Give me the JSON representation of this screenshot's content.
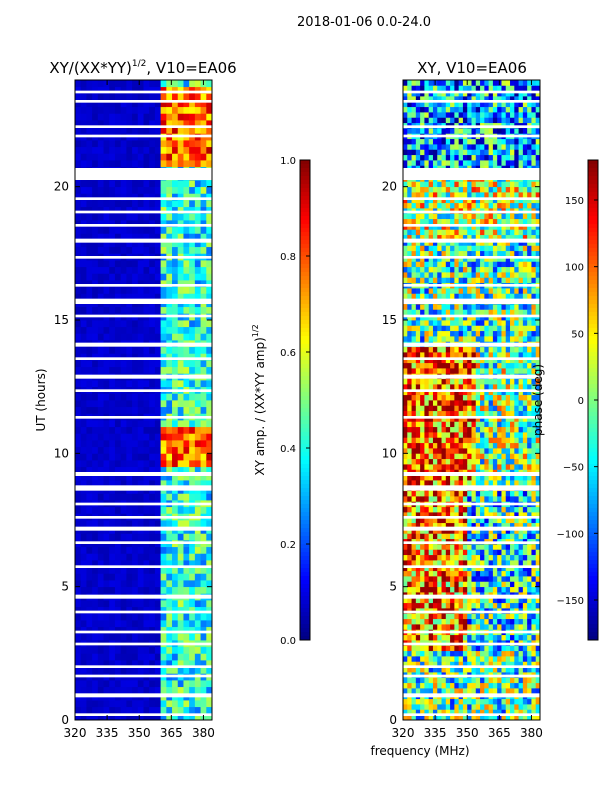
{
  "figure": {
    "suptitle": "2018-01-06 0.0-24.0",
    "xlabel": "frequency (MHz)"
  },
  "chart_data": [
    {
      "type": "heatmap",
      "title_main": "XY/(XX*YY)",
      "title_sup": "1/2",
      "title_tail": ", V10=EA06",
      "ylabel": "UT (hours)",
      "xlim": [
        320,
        384
      ],
      "ylim": [
        0,
        24
      ],
      "xticks": [
        320,
        335,
        350,
        365,
        380
      ],
      "yticks": [
        0,
        5,
        10,
        15,
        20
      ],
      "colorbar": {
        "label_main": "XY amp. / (XX*YY amp)",
        "label_sup": "1/2",
        "range": [
          0.0,
          1.0
        ],
        "ticks": [
          "0.0",
          "0.2",
          "0.4",
          "0.6",
          "0.8",
          "1.0"
        ]
      },
      "description_values": {
        "background_level": 0.05,
        "active_band_mhz": [
          359,
          383
        ],
        "active_band_level": 0.4,
        "peak_level": 0.95,
        "peak_windows_ut": [
          [
            20.7,
            23.7
          ],
          [
            9.5,
            11.0
          ]
        ]
      }
    },
    {
      "type": "heatmap",
      "title": "XY, V10=EA06",
      "xlim": [
        320,
        384
      ],
      "ylim": [
        0,
        24
      ],
      "xticks": [
        320,
        335,
        350,
        365,
        380
      ],
      "yticks": [
        0,
        5,
        10,
        15,
        20
      ],
      "colorbar": {
        "label": "phase (deg)",
        "range": [
          -180,
          180
        ],
        "ticks": [
          "150",
          "100",
          "50",
          "0",
          "−50",
          "−100",
          "−150"
        ],
        "tick_values": [
          150,
          100,
          50,
          0,
          -50,
          -100,
          -150
        ]
      }
    }
  ],
  "flagged_ut_gaps": [
    [
      0.15,
      0.25
    ],
    [
      0.85,
      1.0
    ],
    [
      1.6,
      1.7
    ],
    [
      1.95,
      2.05
    ],
    [
      2.8,
      2.9
    ],
    [
      3.25,
      3.35
    ],
    [
      4.0,
      4.1
    ],
    [
      4.55,
      4.7
    ],
    [
      5.7,
      5.8
    ],
    [
      6.6,
      6.7
    ],
    [
      7.1,
      7.25
    ],
    [
      7.55,
      7.65
    ],
    [
      8.05,
      8.15
    ],
    [
      8.6,
      8.8
    ],
    [
      9.15,
      9.3
    ],
    [
      11.3,
      11.4
    ],
    [
      12.3,
      12.4
    ],
    [
      12.8,
      12.95
    ],
    [
      13.5,
      13.6
    ],
    [
      14.0,
      14.15
    ],
    [
      15.1,
      15.2
    ],
    [
      15.6,
      15.8
    ],
    [
      16.25,
      16.35
    ],
    [
      17.3,
      17.4
    ],
    [
      17.9,
      18.05
    ],
    [
      18.5,
      18.6
    ],
    [
      19.0,
      19.1
    ],
    [
      19.5,
      19.6
    ],
    [
      20.25,
      20.7
    ],
    [
      21.85,
      21.95
    ],
    [
      22.2,
      22.3
    ],
    [
      23.15,
      23.25
    ],
    [
      23.5,
      23.6
    ]
  ]
}
